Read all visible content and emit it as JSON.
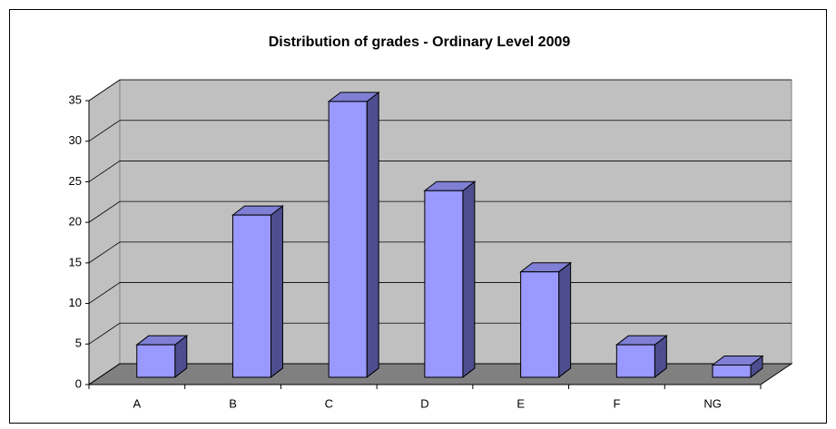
{
  "chart_data": {
    "type": "bar3d",
    "title": "Distribution of grades - Ordinary Level 2009",
    "categories": [
      "A",
      "B",
      "C",
      "D",
      "E",
      "F",
      "NG"
    ],
    "values": [
      4,
      20,
      34,
      23,
      13,
      4,
      1.5
    ],
    "color": "#9999ff",
    "ylim": [
      0,
      35
    ],
    "yticks": [
      0,
      5,
      10,
      15,
      20,
      25,
      30,
      35
    ],
    "grid": true
  }
}
